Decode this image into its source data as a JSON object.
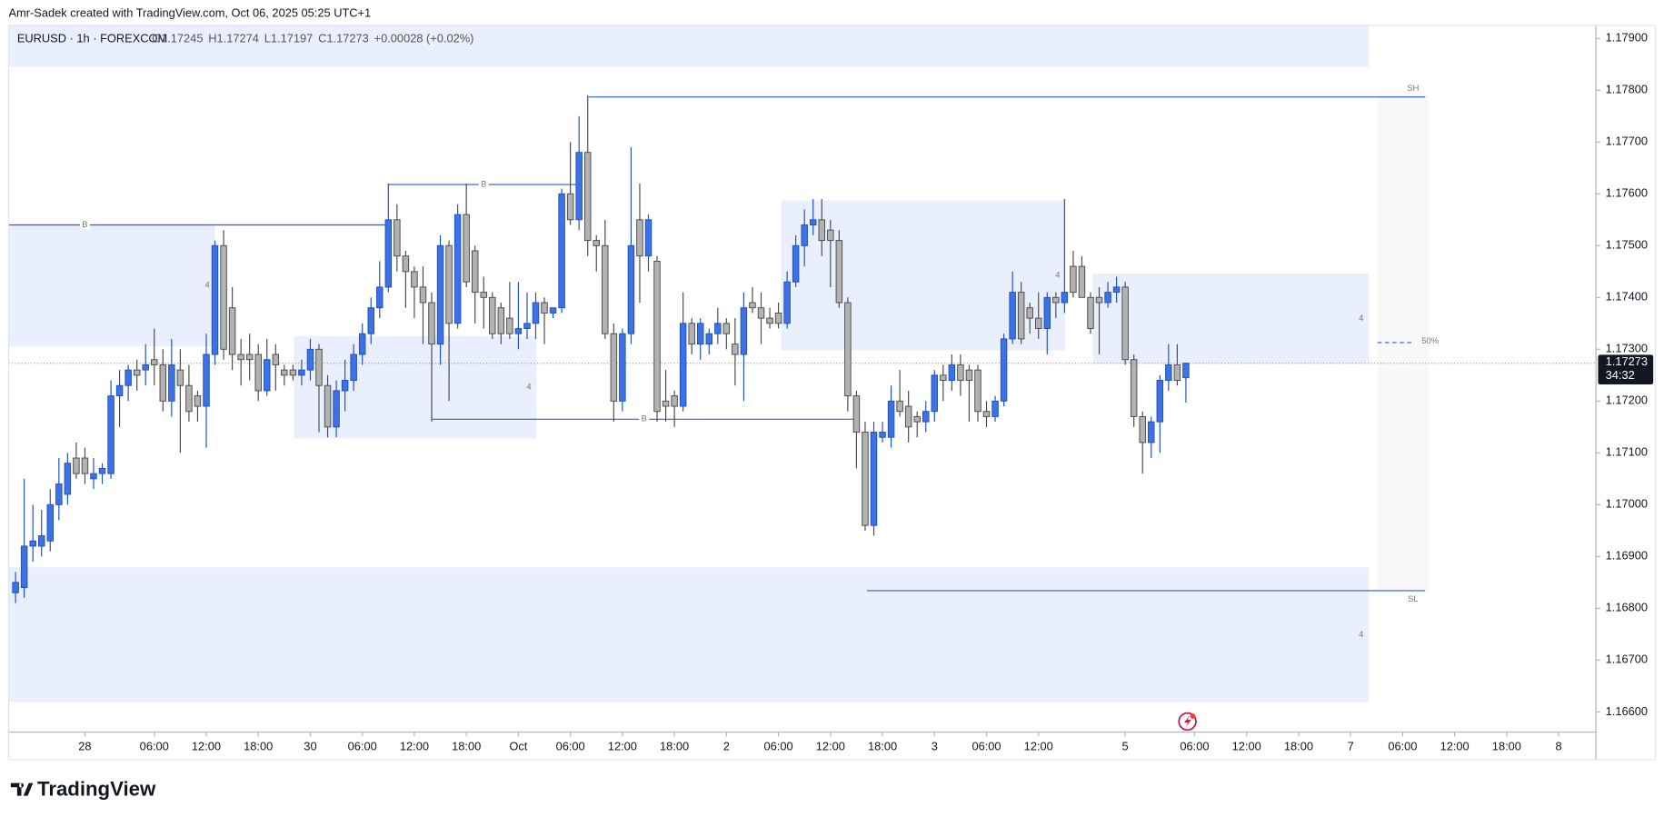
{
  "watermark": "Amr-Sadek created with TradingView.com, Oct 06, 2025 05:25 UTC+1",
  "logo": "TradingView",
  "chart_data": {
    "type": "candlestick",
    "symbol": "EURUSD · 1h · FOREXCOM",
    "ohlc_header": [
      "O1.17245",
      "H1.17274",
      "L1.17197",
      "C1.17273",
      "+0.00028 (+0.02%)"
    ],
    "x": [
      -8,
      -7,
      -6,
      -5,
      -4,
      -3,
      -2,
      -1,
      0,
      1,
      2,
      3,
      4,
      5,
      6,
      7,
      8,
      9,
      10,
      11,
      12,
      13,
      14,
      15,
      16,
      17,
      18,
      19,
      20,
      21,
      22,
      23,
      24,
      25,
      26,
      27,
      28,
      29,
      30,
      31,
      32,
      33,
      34,
      35,
      36,
      37,
      38,
      39,
      40,
      41,
      42,
      43,
      44,
      45,
      46,
      47,
      48,
      49,
      50,
      51,
      52,
      53,
      54,
      55,
      56,
      57,
      58,
      59,
      60,
      61,
      62,
      63,
      64,
      65,
      66,
      67,
      68,
      69,
      70,
      71,
      72,
      73,
      74,
      75,
      76,
      77,
      78,
      79,
      80,
      81,
      82,
      83,
      84,
      85,
      86,
      87,
      88,
      89,
      90,
      91,
      92,
      93,
      94,
      95,
      96,
      97,
      98,
      99,
      100,
      101,
      102,
      103,
      104,
      105,
      106,
      107,
      108,
      109,
      110,
      111,
      112,
      113,
      114,
      115,
      116,
      117,
      118,
      119,
      120,
      121,
      122,
      123,
      124,
      125,
      126,
      127
    ],
    "open": [
      1.1683,
      1.1684,
      1.1692,
      1.1692,
      1.1693,
      1.17,
      1.1702,
      1.1709,
      1.1709,
      1.1705,
      1.1706,
      1.1706,
      1.1721,
      1.1723,
      1.1726,
      1.1726,
      1.1728,
      1.1727,
      1.172,
      1.1726,
      1.1723,
      1.1721,
      1.1719,
      1.1729,
      1.175,
      1.1738,
      1.1729,
      1.1729,
      1.1729,
      1.1722,
      1.1729,
      1.1726,
      1.1726,
      1.1725,
      1.1726,
      1.173,
      1.1723,
      1.1715,
      1.1722,
      1.1724,
      1.1729,
      1.1733,
      1.1738,
      1.1742,
      1.1755,
      1.1748,
      1.1745,
      1.1742,
      1.1739,
      1.1731,
      1.175,
      1.1735,
      1.1756,
      1.1749,
      1.1741,
      1.174,
      1.1738,
      1.1736,
      1.1733,
      1.1734,
      1.1735,
      1.1739,
      1.1737,
      1.1738,
      1.176,
      1.1755,
      1.1768,
      1.1751,
      1.175,
      1.1733,
      1.172,
      1.1733,
      1.1755,
      1.1748,
      1.1747,
      1.172,
      1.1721,
      1.1719,
      1.1735,
      1.1731,
      1.1731,
      1.1733,
      1.1735,
      1.1731,
      1.1729,
      1.1739,
      1.1738,
      1.1736,
      1.1737,
      1.1735,
      1.1743,
      1.175,
      1.1754,
      1.1755,
      1.1753,
      1.1751,
      1.1739,
      1.1721,
      1.1714,
      1.1696,
      1.1713,
      1.1713,
      1.172,
      1.1719,
      1.1717,
      1.1716,
      1.1718,
      1.1725,
      1.1724,
      1.1727,
      1.1726,
      1.1726,
      1.1718,
      1.1717,
      1.172,
      1.1732,
      1.1741,
      1.1738,
      1.1736,
      1.1734,
      1.174,
      1.1739,
      1.1746,
      1.1746,
      1.174,
      1.174,
      1.1739,
      1.1741,
      1.1742,
      1.1728,
      1.1717,
      1.1712,
      1.1716,
      1.1724,
      1.1727,
      1.17245
    ],
    "high": [
      1.1687,
      1.1705,
      1.17,
      1.1699,
      1.1703,
      1.1709,
      1.171,
      1.1712,
      1.1711,
      1.1709,
      1.1708,
      1.1724,
      1.1726,
      1.1727,
      1.1728,
      1.1731,
      1.1734,
      1.173,
      1.1732,
      1.173,
      1.1727,
      1.1722,
      1.1733,
      1.1751,
      1.1753,
      1.1742,
      1.1732,
      1.1733,
      1.1731,
      1.1732,
      1.1731,
      1.1727,
      1.1727,
      1.1728,
      1.1732,
      1.1731,
      1.1725,
      1.1724,
      1.1728,
      1.1731,
      1.1735,
      1.174,
      1.1747,
      1.1762,
      1.1758,
      1.1749,
      1.1746,
      1.1746,
      1.1741,
      1.1752,
      1.1751,
      1.1758,
      1.1762,
      1.175,
      1.1744,
      1.1741,
      1.1739,
      1.1743,
      1.1743,
      1.1741,
      1.1741,
      1.174,
      1.1738,
      1.1761,
      1.177,
      1.1775,
      1.1779,
      1.1752,
      1.1755,
      1.1735,
      1.1734,
      1.1769,
      1.1762,
      1.1756,
      1.1748,
      1.1726,
      1.1722,
      1.1741,
      1.1736,
      1.1736,
      1.1734,
      1.1738,
      1.1736,
      1.1736,
      1.1741,
      1.1742,
      1.1741,
      1.1738,
      1.1739,
      1.1745,
      1.1752,
      1.1757,
      1.1759,
      1.1759,
      1.1755,
      1.1753,
      1.174,
      1.1722,
      1.1716,
      1.1716,
      1.1716,
      1.1723,
      1.1726,
      1.1722,
      1.1718,
      1.172,
      1.1726,
      1.1727,
      1.1729,
      1.1729,
      1.1727,
      1.1727,
      1.172,
      1.1721,
      1.1733,
      1.1745,
      1.1743,
      1.1739,
      1.1741,
      1.1741,
      1.1741,
      1.1759,
      1.1749,
      1.1748,
      1.1741,
      1.1742,
      1.1743,
      1.1744,
      1.1743,
      1.1729,
      1.1718,
      1.1717,
      1.1725,
      1.1731,
      1.1731,
      1.17274
    ],
    "low": [
      1.1681,
      1.1682,
      1.1689,
      1.169,
      1.1691,
      1.1697,
      1.17,
      1.1705,
      1.1704,
      1.1703,
      1.1704,
      1.1705,
      1.1715,
      1.172,
      1.1722,
      1.1723,
      1.1723,
      1.1718,
      1.1717,
      1.171,
      1.1716,
      1.1716,
      1.1711,
      1.1727,
      1.1728,
      1.1726,
      1.1723,
      1.1724,
      1.172,
      1.1721,
      1.1722,
      1.1723,
      1.1724,
      1.1723,
      1.1724,
      1.1714,
      1.1713,
      1.1713,
      1.1718,
      1.1722,
      1.1727,
      1.1731,
      1.1736,
      1.1741,
      1.1745,
      1.1738,
      1.1736,
      1.1731,
      1.1716,
      1.1727,
      1.172,
      1.1734,
      1.1742,
      1.1735,
      1.1734,
      1.1732,
      1.1731,
      1.1732,
      1.173,
      1.1732,
      1.1732,
      1.1731,
      1.1736,
      1.1737,
      1.1754,
      1.1753,
      1.1748,
      1.1745,
      1.1732,
      1.1716,
      1.1718,
      1.1731,
      1.1739,
      1.1745,
      1.1716,
      1.1716,
      1.1715,
      1.1718,
      1.1729,
      1.1728,
      1.1729,
      1.1731,
      1.173,
      1.1723,
      1.172,
      1.1737,
      1.1731,
      1.1734,
      1.1734,
      1.1734,
      1.1742,
      1.1746,
      1.1752,
      1.1748,
      1.1742,
      1.1738,
      1.1718,
      1.1707,
      1.1695,
      1.1694,
      1.1712,
      1.1711,
      1.1717,
      1.1712,
      1.1713,
      1.1714,
      1.1716,
      1.172,
      1.1722,
      1.1721,
      1.1716,
      1.1716,
      1.1715,
      1.1716,
      1.1719,
      1.1731,
      1.1731,
      1.1733,
      1.1732,
      1.1729,
      1.1736,
      1.1737,
      1.174,
      1.174,
      1.1733,
      1.1729,
      1.1738,
      1.1739,
      1.1727,
      1.1715,
      1.1706,
      1.1709,
      1.171,
      1.1722,
      1.1723,
      1.17197
    ],
    "close": [
      1.1685,
      1.1692,
      1.1693,
      1.1694,
      1.17,
      1.1704,
      1.1708,
      1.1706,
      1.1706,
      1.1706,
      1.1707,
      1.1721,
      1.1723,
      1.1726,
      1.1725,
      1.1727,
      1.1727,
      1.172,
      1.1727,
      1.1723,
      1.1718,
      1.1719,
      1.1729,
      1.175,
      1.173,
      1.1729,
      1.1728,
      1.1728,
      1.1722,
      1.1728,
      1.1727,
      1.1725,
      1.1725,
      1.1726,
      1.173,
      1.1723,
      1.1715,
      1.1722,
      1.1724,
      1.1729,
      1.1733,
      1.1738,
      1.1742,
      1.1755,
      1.1748,
      1.1745,
      1.1742,
      1.1739,
      1.1731,
      1.175,
      1.1735,
      1.1756,
      1.1743,
      1.1741,
      1.174,
      1.1733,
      1.1733,
      1.1733,
      1.1734,
      1.1735,
      1.1739,
      1.1737,
      1.1738,
      1.176,
      1.1755,
      1.1768,
      1.1751,
      1.175,
      1.1733,
      1.172,
      1.1733,
      1.175,
      1.1748,
      1.1755,
      1.1718,
      1.1719,
      1.1719,
      1.1735,
      1.1731,
      1.1735,
      1.1733,
      1.1735,
      1.1733,
      1.1729,
      1.1738,
      1.1738,
      1.1736,
      1.1735,
      1.1735,
      1.1743,
      1.175,
      1.1754,
      1.1755,
      1.1751,
      1.1751,
      1.1739,
      1.1721,
      1.1714,
      1.1696,
      1.1714,
      1.1714,
      1.172,
      1.1718,
      1.1715,
      1.1716,
      1.1718,
      1.1725,
      1.1724,
      1.1727,
      1.1724,
      1.1724,
      1.1718,
      1.1717,
      1.172,
      1.1732,
      1.1741,
      1.1732,
      1.1736,
      1.1734,
      1.174,
      1.1739,
      1.1741,
      1.1741,
      1.174,
      1.1734,
      1.1739,
      1.1741,
      1.1742,
      1.1728,
      1.1717,
      1.1712,
      1.1716,
      1.1724,
      1.1727,
      1.1724,
      1.17273
    ],
    "up_color": "#3d72e4",
    "down_color": "#b2b2b2",
    "xlim": [
      -8.8,
      174.3
    ],
    "xticks": [
      {
        "value": 0,
        "label": "28"
      },
      {
        "value": 8,
        "label": "06:00"
      },
      {
        "value": 14,
        "label": "12:00"
      },
      {
        "value": 20,
        "label": "18:00"
      },
      {
        "value": 26,
        "label": "30"
      },
      {
        "value": 32,
        "label": "06:00"
      },
      {
        "value": 38,
        "label": "12:00"
      },
      {
        "value": 44,
        "label": "18:00"
      },
      {
        "value": 50,
        "label": "Oct"
      },
      {
        "value": 56,
        "label": "06:00"
      },
      {
        "value": 62,
        "label": "12:00"
      },
      {
        "value": 68,
        "label": "18:00"
      },
      {
        "value": 74,
        "label": "2"
      },
      {
        "value": 80,
        "label": "06:00"
      },
      {
        "value": 86,
        "label": "12:00"
      },
      {
        "value": 92,
        "label": "18:00"
      },
      {
        "value": 98,
        "label": "3"
      },
      {
        "value": 104,
        "label": "06:00"
      },
      {
        "value": 110,
        "label": "12:00"
      },
      {
        "value": 120,
        "label": "5"
      },
      {
        "value": 128,
        "label": "06:00"
      },
      {
        "value": 134,
        "label": "12:00"
      },
      {
        "value": 140,
        "label": "18:00"
      },
      {
        "value": 146,
        "label": "7"
      },
      {
        "value": 152,
        "label": "06:00"
      },
      {
        "value": 158,
        "label": "12:00"
      },
      {
        "value": 164,
        "label": "18:00"
      },
      {
        "value": 170,
        "label": "8"
      }
    ],
    "ylim": [
      1.16561,
      1.17925
    ],
    "yticks": [
      {
        "value": 1.179,
        "label": "1.17900"
      },
      {
        "value": 1.178,
        "label": "1.17800"
      },
      {
        "value": 1.177,
        "label": "1.17700"
      },
      {
        "value": 1.176,
        "label": "1.17600"
      },
      {
        "value": 1.175,
        "label": "1.17500"
      },
      {
        "value": 1.174,
        "label": "1.17400"
      },
      {
        "value": 1.173,
        "label": "1.17300"
      },
      {
        "value": 1.172,
        "label": "1.17200"
      },
      {
        "value": 1.171,
        "label": "1.17100"
      },
      {
        "value": 1.17,
        "label": "1.17000"
      },
      {
        "value": 1.169,
        "label": "1.16900"
      },
      {
        "value": 1.168,
        "label": "1.16800"
      },
      {
        "value": 1.167,
        "label": "1.16700"
      },
      {
        "value": 1.166,
        "label": "1.16600"
      }
    ],
    "zones": [
      {
        "x": [
          -8.8,
          148.1
        ],
        "y": [
          1.17845,
          1.17925
        ],
        "color": "#e9effd"
      },
      {
        "x": [
          -8.8,
          15.0
        ],
        "y": [
          1.17306,
          1.1754
        ],
        "color": "#e9effd",
        "label": "4"
      },
      {
        "x": [
          24.1,
          52.1
        ],
        "y": [
          1.17128,
          1.17325
        ],
        "color": "#e9effd",
        "label": "4"
      },
      {
        "x": [
          80.3,
          113.1
        ],
        "y": [
          1.17298,
          1.17587
        ],
        "color": "#e9effd",
        "label": "4"
      },
      {
        "x": [
          116.3,
          148.1
        ],
        "y": [
          1.17272,
          1.17446
        ],
        "color": "#e9effd",
        "label": "4"
      },
      {
        "x": [
          -8.8,
          148.1
        ],
        "y": [
          1.16619,
          1.16879
        ],
        "color": "#e9effd",
        "label": "4"
      },
      {
        "x": [
          149.1,
          155.0
        ],
        "y": [
          1.1683,
          1.1779
        ],
        "color": "#f8f8f8"
      }
    ],
    "levels": [
      {
        "label": "B",
        "y": 1.1754,
        "x": [
          -8.8,
          35.0
        ],
        "label_x": 0
      },
      {
        "label": "B",
        "y": 1.17618,
        "x": [
          35.0,
          57.0
        ],
        "label_x": 46
      },
      {
        "label": "SH",
        "y": 1.17787,
        "x": [
          58.1,
          154.6
        ],
        "label_x": 153.2
      },
      {
        "label": "B",
        "y": 1.17165,
        "x": [
          40.0,
          89.3
        ],
        "label_x": 64.5
      },
      {
        "label": "SL",
        "y": 1.16834,
        "x": [
          90.2,
          154.6
        ],
        "label_x": 153.2
      },
      {
        "label": "50%",
        "y": 1.17313,
        "x": [
          149.1,
          153.1
        ],
        "label_x": 154.2,
        "dashed": true
      }
    ],
    "level_color": "#2f5bd0",
    "last_price": {
      "value": 1.17273,
      "label": "1.17273",
      "countdown": "34:32"
    }
  }
}
